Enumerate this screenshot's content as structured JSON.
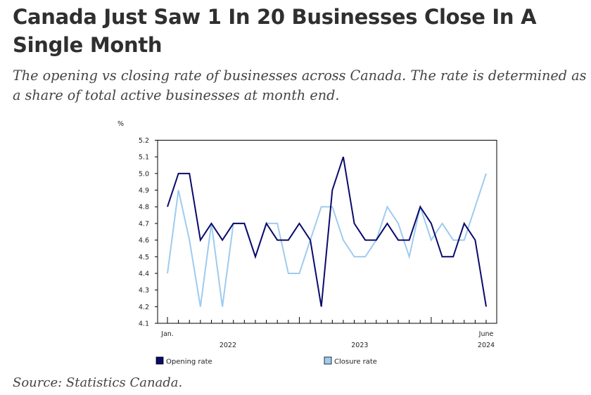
{
  "header": {
    "title": "Canada Just Saw 1 In 20 Businesses Close In A Single Month",
    "subtitle": "The opening vs closing rate of businesses across Canada. The rate is determined as a share of total active businesses at month end."
  },
  "footer": {
    "source": "Source: Statistics Canada."
  },
  "colors": {
    "opening": "#0a0a6b",
    "closure": "#9ecbf0",
    "axis": "#000000"
  },
  "chart_data": {
    "type": "line",
    "ylabel": "%",
    "ylim": [
      4.1,
      5.2
    ],
    "yticks": [
      "4.1",
      "4.2",
      "4.3",
      "4.4",
      "4.5",
      "4.6",
      "4.7",
      "4.8",
      "4.9",
      "5.0",
      "5.1",
      "5.2"
    ],
    "x_start_label": "Jan.",
    "x_end_label": "June",
    "x_year_labels": [
      "2022",
      "2023",
      "2024"
    ],
    "series": [
      {
        "name": "Opening rate",
        "values": [
          4.8,
          5.0,
          5.0,
          4.6,
          4.7,
          4.6,
          4.7,
          4.7,
          4.5,
          4.7,
          4.6,
          4.6,
          4.7,
          4.6,
          4.2,
          4.9,
          5.1,
          4.7,
          4.6,
          4.6,
          4.7,
          4.6,
          4.6,
          4.8,
          4.7,
          4.5,
          4.5,
          4.7,
          4.6,
          4.2
        ]
      },
      {
        "name": "Closure rate",
        "values": [
          4.4,
          4.9,
          4.6,
          4.2,
          4.7,
          4.2,
          4.7,
          4.7,
          4.5,
          4.7,
          4.7,
          4.4,
          4.4,
          4.6,
          4.8,
          4.8,
          4.6,
          4.5,
          4.5,
          4.6,
          4.8,
          4.7,
          4.5,
          4.8,
          4.6,
          4.7,
          4.6,
          4.6,
          4.8,
          5.0
        ]
      }
    ]
  }
}
